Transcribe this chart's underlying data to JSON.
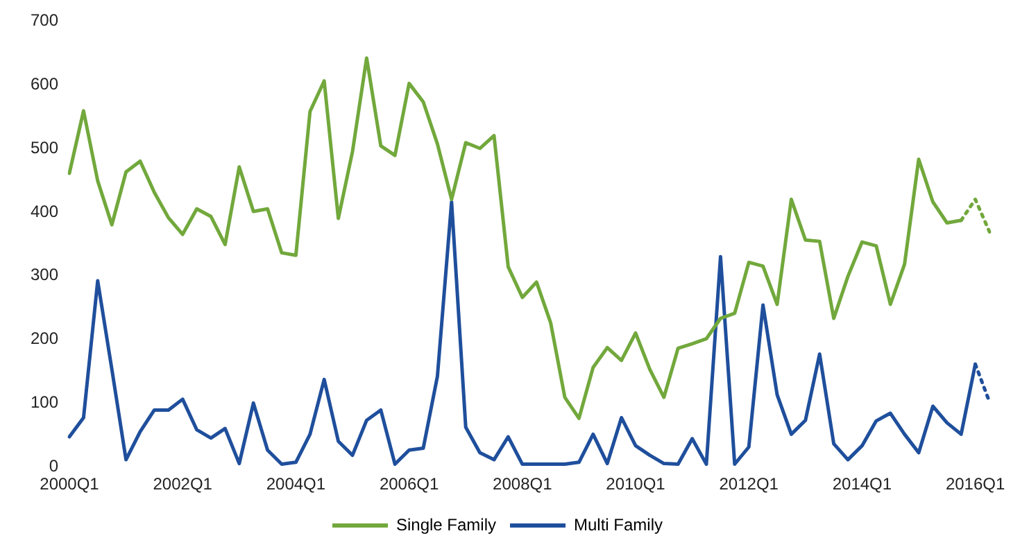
{
  "chart_data": {
    "type": "line",
    "categories": [
      "2000Q1",
      null,
      null,
      null,
      null,
      null,
      null,
      null,
      "2002Q1",
      null,
      null,
      null,
      null,
      null,
      null,
      null,
      "2004Q1",
      null,
      null,
      null,
      null,
      null,
      null,
      null,
      "2006Q1",
      null,
      null,
      null,
      null,
      null,
      null,
      null,
      "2008Q1",
      null,
      null,
      null,
      null,
      null,
      null,
      null,
      "2010Q1",
      null,
      null,
      null,
      null,
      null,
      null,
      null,
      "2012Q1",
      null,
      null,
      null,
      null,
      null,
      null,
      null,
      "2014Q1",
      null,
      null,
      null,
      null,
      null,
      null,
      null,
      "2016Q1",
      null
    ],
    "series": [
      {
        "name": "Single Family",
        "color": "#72a83c",
        "line_style": "solid",
        "values": [
          461,
          559,
          449,
          380,
          463,
          480,
          431,
          391,
          365,
          405,
          393,
          349,
          471,
          401,
          405,
          336,
          332,
          558,
          606,
          390,
          495,
          642,
          504,
          489,
          602,
          573,
          507,
          420,
          509,
          500,
          520,
          314,
          266,
          290,
          226,
          109,
          76,
          156,
          187,
          167,
          210,
          153,
          109,
          186,
          193,
          201,
          233,
          241,
          321,
          315,
          255,
          420,
          356,
          354,
          233,
          299,
          353,
          347,
          255,
          318,
          483,
          416,
          383,
          387,
          null,
          null
        ]
      },
      {
        "name": "Multi Family",
        "color": "#1f4f9c",
        "line_style": "solid",
        "values": [
          47,
          77,
          292,
          153,
          11,
          55,
          89,
          89,
          106,
          58,
          45,
          60,
          5,
          100,
          26,
          4,
          7,
          51,
          137,
          40,
          18,
          73,
          89,
          4,
          26,
          29,
          142,
          416,
          62,
          22,
          11,
          47,
          4,
          4,
          4,
          4,
          7,
          51,
          5,
          77,
          33,
          18,
          5,
          4,
          44,
          4,
          330,
          4,
          31,
          254,
          113,
          51,
          73,
          177,
          36,
          11,
          33,
          72,
          84,
          51,
          22,
          95,
          69,
          51,
          161,
          null
        ]
      },
      {
        "color": "#72a83c",
        "line_style": "dotted",
        "values": [
          null,
          null,
          null,
          null,
          null,
          null,
          null,
          null,
          null,
          null,
          null,
          null,
          null,
          null,
          null,
          null,
          null,
          null,
          null,
          null,
          null,
          null,
          null,
          null,
          null,
          null,
          null,
          null,
          null,
          null,
          null,
          null,
          null,
          null,
          null,
          null,
          null,
          null,
          null,
          null,
          null,
          null,
          null,
          null,
          null,
          null,
          null,
          null,
          null,
          null,
          null,
          null,
          null,
          null,
          null,
          null,
          null,
          null,
          null,
          null,
          null,
          null,
          null,
          387,
          420,
          369
        ]
      },
      {
        "color": "#1f4f9c",
        "line_style": "dotted",
        "values": [
          null,
          null,
          null,
          null,
          null,
          null,
          null,
          null,
          null,
          null,
          null,
          null,
          null,
          null,
          null,
          null,
          null,
          null,
          null,
          null,
          null,
          null,
          null,
          null,
          null,
          null,
          null,
          null,
          null,
          null,
          null,
          null,
          null,
          null,
          null,
          null,
          null,
          null,
          null,
          null,
          null,
          null,
          null,
          null,
          null,
          null,
          null,
          null,
          null,
          null,
          null,
          null,
          null,
          null,
          null,
          null,
          null,
          null,
          null,
          null,
          null,
          null,
          null,
          null,
          161,
          102
        ]
      }
    ],
    "ylim": [
      0,
      700
    ],
    "yticks": [
      0,
      100,
      200,
      300,
      400,
      500,
      600,
      700
    ],
    "grid": false,
    "legend": "bottom",
    "marker": "none"
  }
}
